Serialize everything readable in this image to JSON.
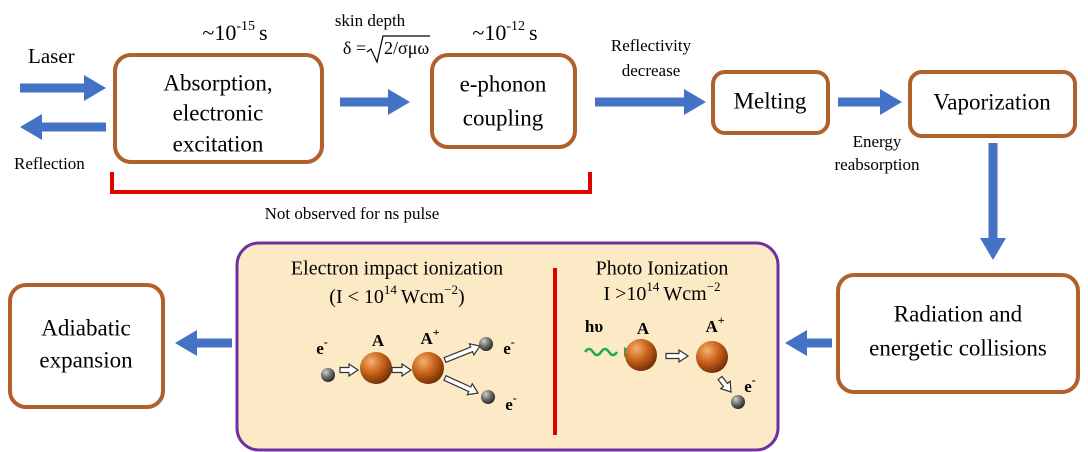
{
  "inputs": {
    "laser": "Laser",
    "reflection": "Reflection"
  },
  "timescales": [
    {
      "prefix": "~10",
      "exponent": "-15",
      "unit": "s"
    },
    {
      "prefix": "~10",
      "exponent": "-12",
      "unit": "s"
    }
  ],
  "skin_depth": {
    "label": "skin depth",
    "lhs": "δ =",
    "radicand": "2/σμω"
  },
  "nodes": [
    {
      "lines": [
        "Absorption,",
        "electronic",
        "excitation"
      ]
    },
    {
      "lines": [
        "e-phonon",
        "coupling"
      ]
    },
    {
      "lines": [
        "Melting"
      ]
    },
    {
      "lines": [
        "Vaporization"
      ]
    },
    {
      "lines": [
        "Radiation and",
        "energetic collisions"
      ]
    },
    {
      "lines": [
        "Adiabatic",
        "expansion"
      ]
    }
  ],
  "edge_labels": {
    "reflectivity": [
      "Reflectivity",
      "decrease"
    ],
    "reabsorption": [
      "Energy",
      "reabsorption"
    ]
  },
  "bracket_note": "Not observed for ns pulse",
  "panel": {
    "electron_impact": {
      "title": "Electron impact ionization",
      "condition": {
        "open": "(I < 10",
        "exponent": "14",
        "unit": "Wcm",
        "unit_exponent": "−2",
        "close": ")"
      },
      "particles": [
        {
          "base": "e",
          "sup": "-"
        },
        {
          "base": "A"
        },
        {
          "base": "A",
          "sup": "+"
        },
        {
          "base": "e",
          "sup": "-"
        },
        {
          "base": "e",
          "sup": "-"
        }
      ]
    },
    "photo": {
      "title": "Photo Ionization",
      "condition": {
        "open": "I >10",
        "exponent": "14",
        "unit": "Wcm",
        "unit_exponent": "−2"
      },
      "particles": [
        {
          "base": "hυ"
        },
        {
          "base": "A"
        },
        {
          "base": "A",
          "sup": "+"
        },
        {
          "base": "e",
          "sup": "-"
        }
      ]
    }
  }
}
